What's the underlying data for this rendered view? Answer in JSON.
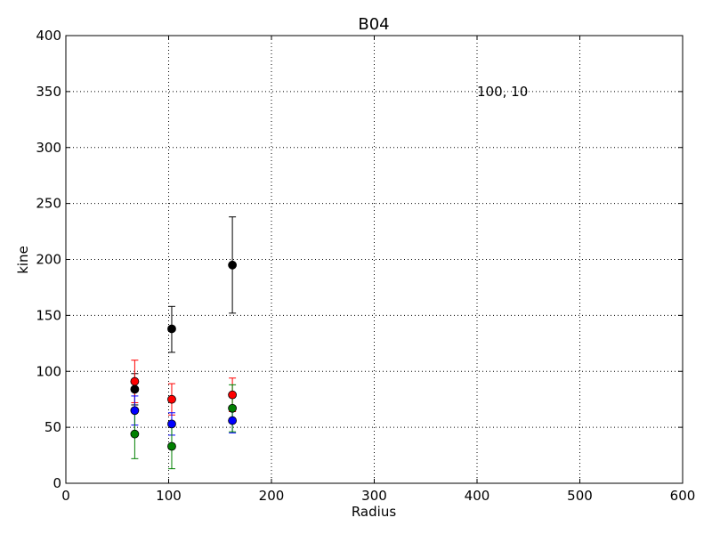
{
  "chart_data": {
    "type": "scatter",
    "title": "B04",
    "xlabel": "Radius",
    "ylabel": "kine",
    "xlim": [
      0,
      600
    ],
    "ylim": [
      0,
      400
    ],
    "xticks": [
      0,
      100,
      200,
      300,
      400,
      500,
      600
    ],
    "yticks": [
      0,
      50,
      100,
      150,
      200,
      250,
      300,
      350,
      400
    ],
    "grid": true,
    "annotation": {
      "text": "100, 10",
      "x": 400,
      "y": 350
    },
    "series": [
      {
        "color": "#000000",
        "x": [
          67,
          103,
          162
        ],
        "y": [
          84,
          138,
          195
        ],
        "err_low": [
          70,
          117,
          152
        ],
        "err_high": [
          98,
          158,
          238
        ]
      },
      {
        "color": "#ff0000",
        "x": [
          67,
          103,
          162
        ],
        "y": [
          91,
          75,
          79
        ],
        "err_low": [
          72,
          61,
          64
        ],
        "err_high": [
          110,
          89,
          94
        ]
      },
      {
        "color": "#0000ff",
        "x": [
          67,
          103,
          162
        ],
        "y": [
          65,
          53,
          56
        ],
        "err_low": [
          52,
          43,
          45
        ],
        "err_high": [
          78,
          63,
          67
        ]
      },
      {
        "color": "#008000",
        "x": [
          67,
          103,
          162
        ],
        "y": [
          44,
          33,
          67
        ],
        "err_low": [
          22,
          13,
          46
        ],
        "err_high": [
          66,
          53,
          88
        ]
      }
    ]
  }
}
